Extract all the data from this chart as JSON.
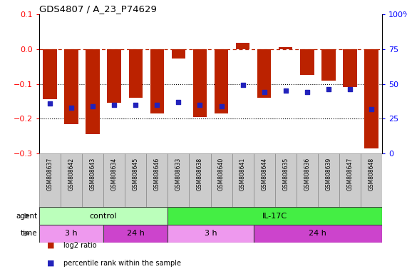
{
  "title": "GDS4807 / A_23_P74629",
  "samples": [
    "GSM808637",
    "GSM808642",
    "GSM808643",
    "GSM808634",
    "GSM808645",
    "GSM808646",
    "GSM808633",
    "GSM808638",
    "GSM808640",
    "GSM808641",
    "GSM808644",
    "GSM808635",
    "GSM808636",
    "GSM808639",
    "GSM808647",
    "GSM808648"
  ],
  "log2_ratio": [
    -0.145,
    -0.215,
    -0.245,
    -0.155,
    -0.14,
    -0.185,
    -0.028,
    -0.195,
    -0.185,
    0.018,
    -0.14,
    0.005,
    -0.075,
    -0.09,
    -0.11,
    -0.285
  ],
  "percentile_rank": [
    36,
    33,
    34,
    35,
    35,
    35,
    37,
    35,
    34,
    49,
    44,
    45,
    44,
    46,
    46,
    32
  ],
  "bar_color": "#bb2200",
  "dot_color": "#2222bb",
  "ylim_left": [
    -0.3,
    0.1
  ],
  "ylim_right": [
    0,
    100
  ],
  "yticks_left": [
    0.1,
    0.0,
    -0.1,
    -0.2,
    -0.3
  ],
  "yticks_right": [
    100,
    75,
    50,
    25,
    0
  ],
  "hline_dashed": 0.0,
  "hlines_dotted": [
    -0.1,
    -0.2
  ],
  "agent_groups": [
    {
      "label": "control",
      "start": 0,
      "end": 6,
      "color": "#bbffbb"
    },
    {
      "label": "IL-17C",
      "start": 6,
      "end": 16,
      "color": "#44ee44"
    }
  ],
  "time_groups": [
    {
      "label": "3 h",
      "start": 0,
      "end": 3,
      "color": "#ee99ee"
    },
    {
      "label": "24 h",
      "start": 3,
      "end": 6,
      "color": "#cc44cc"
    },
    {
      "label": "3 h",
      "start": 6,
      "end": 10,
      "color": "#ee99ee"
    },
    {
      "label": "24 h",
      "start": 10,
      "end": 16,
      "color": "#cc44cc"
    }
  ],
  "legend_items": [
    {
      "label": "log2 ratio",
      "color": "#bb2200"
    },
    {
      "label": "percentile rank within the sample",
      "color": "#2222bb"
    }
  ],
  "background_color": "#ffffff",
  "tick_label_area_color": "#cccccc"
}
